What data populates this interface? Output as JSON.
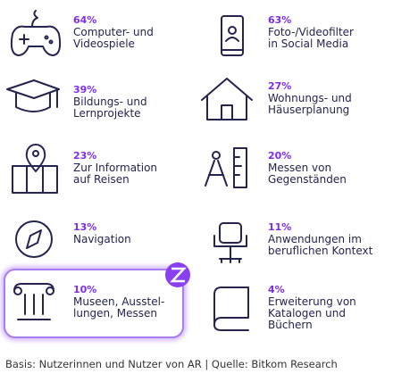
{
  "items": [
    {
      "percent": "64%",
      "lines": [
        "Computer- und",
        "Videospiele"
      ]
    },
    {
      "percent": "63%",
      "lines": [
        "Foto-/Videofilter",
        "in Social Media"
      ]
    },
    {
      "percent": "39%",
      "lines": [
        "Bildungs- und",
        "Lernprojekte"
      ]
    },
    {
      "percent": "27%",
      "lines": [
        "Wohnungs- und",
        "Häuserplanung"
      ]
    },
    {
      "percent": "23%",
      "lines": [
        "Zur Information",
        "auf Reisen"
      ]
    },
    {
      "percent": "20%",
      "lines": [
        "Messen von",
        "Gegenständen"
      ]
    },
    {
      "percent": "13%",
      "lines": [
        "Navigation"
      ]
    },
    {
      "percent": "11%",
      "lines": [
        "Anwendungen im",
        "beruflichen Kontext"
      ]
    },
    {
      "percent": "10%",
      "lines": [
        "Museen, Ausstel-",
        "lungen, Messen"
      ]
    },
    {
      "percent": "4%",
      "lines": [
        "Erweiterung von",
        "Katalogen und",
        "Büchern"
      ]
    }
  ],
  "footer": "Basis: Nutzerinnen und Nutzer von AR | Quelle: Bitkom Research"
}
